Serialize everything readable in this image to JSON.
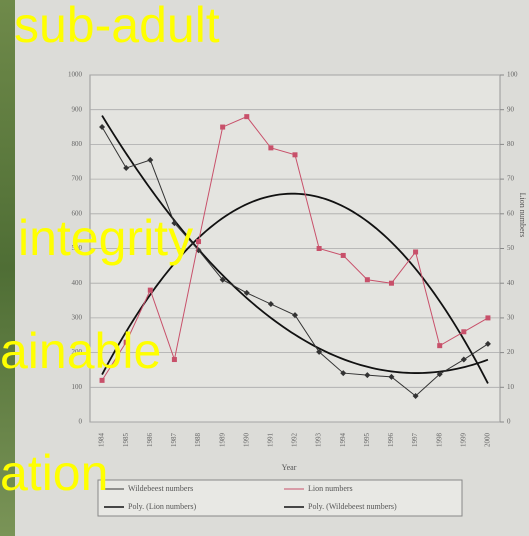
{
  "chart_data": {
    "type": "line",
    "overlay_texts": [
      "sub-adult",
      "integrity",
      "ainable",
      "ation"
    ],
    "xlabel": "Year",
    "y2label": "Lion numbers",
    "categories": [
      "1984",
      "1985",
      "1986",
      "1987",
      "1988",
      "1989",
      "1990",
      "1991",
      "1992",
      "1993",
      "1994",
      "1995",
      "1996",
      "1997",
      "1998",
      "1999",
      "2000"
    ],
    "series": [
      {
        "name": "Wildebeest numbers",
        "color": "#333333",
        "marker": "diamond",
        "values": [
          850,
          732,
          755,
          573,
          495,
          410,
          372,
          340,
          308,
          202,
          141,
          135,
          130,
          75,
          138,
          180,
          225
        ]
      },
      {
        "name": "Lion numbers",
        "color": "#c8506a",
        "marker": "square",
        "axis": "y2",
        "values": [
          12,
          23,
          38,
          18,
          52,
          85,
          88,
          79,
          77,
          50,
          48,
          41,
          40,
          49,
          22,
          26,
          30
        ]
      }
    ],
    "trendlines": [
      {
        "name": "Poly. (Lion numbers)",
        "series": 1,
        "order": 2,
        "color": "#111111"
      },
      {
        "name": "Poly. (Wildebeest numbers)",
        "series": 0,
        "order": 2,
        "color": "#111111"
      }
    ],
    "ylim": [
      0,
      1000
    ],
    "yticks": [
      0,
      100,
      200,
      300,
      400,
      500,
      600,
      700,
      800,
      900,
      1000
    ],
    "y2lim": [
      0,
      100
    ],
    "y2ticks": [
      0,
      10,
      20,
      30,
      40,
      50,
      60,
      70,
      80,
      90,
      100
    ],
    "grid": true
  }
}
